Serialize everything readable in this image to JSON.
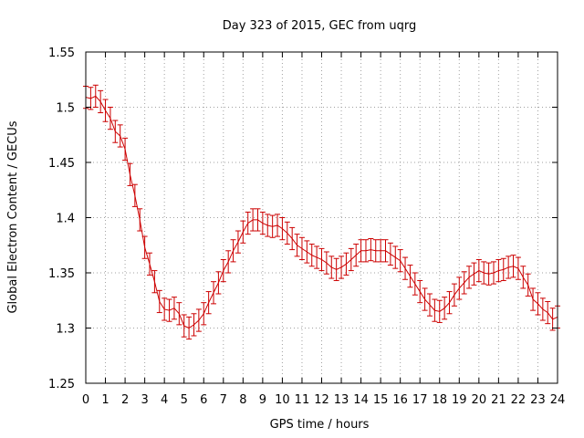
{
  "chart_data": {
    "type": "line",
    "title": "Day 323 of 2015, GEC from uqrg",
    "xlabel": "GPS time / hours",
    "ylabel": "Global Electron Content / GECUs",
    "xlim": [
      0,
      24
    ],
    "ylim": [
      1.25,
      1.55
    ],
    "xticks": [
      "0",
      "1",
      "2",
      "3",
      "4",
      "5",
      "6",
      "7",
      "8",
      "9",
      "10",
      "11",
      "12",
      "13",
      "14",
      "15",
      "16",
      "17",
      "18",
      "19",
      "20",
      "21",
      "22",
      "23",
      "24"
    ],
    "yticks": [
      "1.25",
      "1.3",
      "1.35",
      "1.4",
      "1.45",
      "1.5",
      "1.55"
    ],
    "grid": true,
    "series_color": "#cc0000",
    "error_bar": 0.01,
    "series": [
      {
        "x": [
          0,
          0.25,
          0.5,
          0.75,
          1,
          1.25,
          1.5,
          1.75,
          2,
          2.25,
          2.5,
          2.75,
          3,
          3.25,
          3.5,
          3.75,
          4,
          4.25,
          4.5,
          4.75,
          5,
          5.25,
          5.5,
          5.75,
          6,
          6.25,
          6.5,
          6.75,
          7,
          7.25,
          7.5,
          7.75,
          8,
          8.25,
          8.5,
          8.75,
          9,
          9.25,
          9.5,
          9.75,
          10,
          10.25,
          10.5,
          10.75,
          11,
          11.25,
          11.5,
          11.75,
          12,
          12.25,
          12.5,
          12.75,
          13,
          13.25,
          13.5,
          13.75,
          14,
          14.25,
          14.5,
          14.75,
          15,
          15.25,
          15.5,
          15.75,
          16,
          16.25,
          16.5,
          16.75,
          17,
          17.25,
          17.5,
          17.75,
          18,
          18.25,
          18.5,
          18.75,
          19,
          19.25,
          19.5,
          19.75,
          20,
          20.25,
          20.5,
          20.75,
          21,
          21.25,
          21.5,
          21.75,
          22,
          22.25,
          22.5,
          22.75,
          23,
          23.25,
          23.5,
          23.75,
          24
        ],
        "y": [
          1.509,
          1.508,
          1.51,
          1.505,
          1.497,
          1.49,
          1.478,
          1.474,
          1.462,
          1.439,
          1.42,
          1.398,
          1.373,
          1.358,
          1.342,
          1.324,
          1.317,
          1.316,
          1.318,
          1.313,
          1.302,
          1.3,
          1.303,
          1.307,
          1.313,
          1.323,
          1.332,
          1.341,
          1.352,
          1.36,
          1.37,
          1.378,
          1.387,
          1.395,
          1.398,
          1.398,
          1.395,
          1.393,
          1.392,
          1.393,
          1.39,
          1.386,
          1.381,
          1.375,
          1.372,
          1.369,
          1.366,
          1.364,
          1.362,
          1.359,
          1.355,
          1.353,
          1.355,
          1.358,
          1.362,
          1.366,
          1.37,
          1.37,
          1.371,
          1.37,
          1.37,
          1.37,
          1.367,
          1.364,
          1.361,
          1.354,
          1.347,
          1.34,
          1.333,
          1.326,
          1.321,
          1.316,
          1.315,
          1.318,
          1.323,
          1.33,
          1.336,
          1.341,
          1.346,
          1.349,
          1.352,
          1.35,
          1.349,
          1.35,
          1.352,
          1.353,
          1.355,
          1.356,
          1.354,
          1.346,
          1.339,
          1.326,
          1.322,
          1.317,
          1.314,
          1.308,
          1.31
        ]
      }
    ]
  }
}
